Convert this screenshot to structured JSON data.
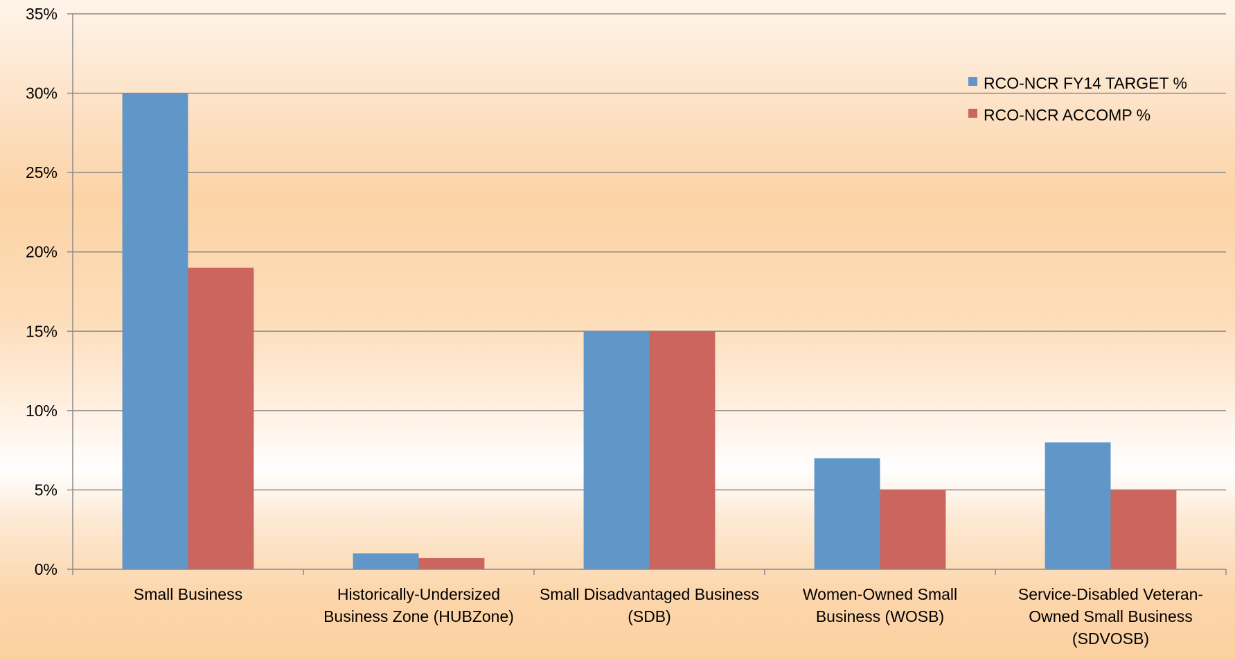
{
  "chart_data": {
    "type": "bar",
    "title": "",
    "xlabel": "",
    "ylabel": "",
    "ylim": [
      0,
      35
    ],
    "y_ticks": [
      "0%",
      "5%",
      "10%",
      "15%",
      "20%",
      "25%",
      "30%",
      "35%"
    ],
    "grid": true,
    "legend_position": "top-right",
    "categories": [
      [
        "Small Business"
      ],
      [
        "Historically-Undersized",
        "Business Zone (HUBZone)"
      ],
      [
        "Small Disadvantaged Business",
        "(SDB)"
      ],
      [
        "Women-Owned Small",
        "Business (WOSB)"
      ],
      [
        "Service-Disabled Veteran-",
        "Owned Small Business",
        "(SDVOSB)"
      ]
    ],
    "series": [
      {
        "name": "RCO-NCR FY14 TARGET %",
        "color": "#6196c8",
        "values": [
          30,
          1,
          15,
          7,
          8
        ]
      },
      {
        "name": "RCO-NCR ACCOMP %",
        "color": "#cc655e",
        "values": [
          19,
          0.7,
          15,
          5,
          5
        ]
      }
    ],
    "gridline_color": "#8a8a8a",
    "axis_color": "#8a8a8a"
  }
}
